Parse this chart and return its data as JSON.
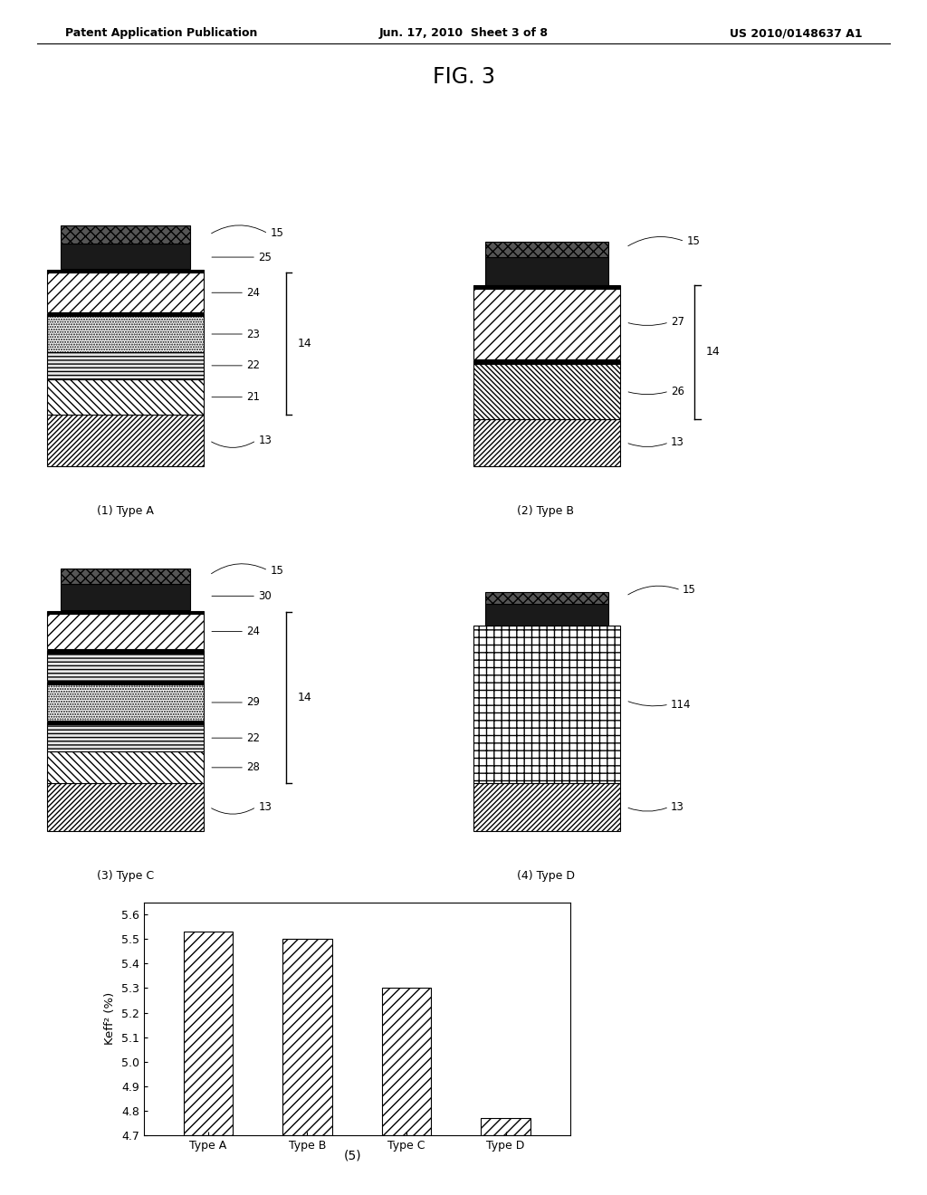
{
  "header_left": "Patent Application Publication",
  "header_center": "Jun. 17, 2010  Sheet 3 of 8",
  "header_right": "US 2010/0148637 A1",
  "fig_title": "FIG. 3",
  "bar_categories": [
    "Type A",
    "Type B",
    "Type C",
    "Type D"
  ],
  "bar_values": [
    5.53,
    5.5,
    5.3,
    4.77
  ],
  "ylabel": "Keff² (%)",
  "ylim_min": 4.7,
  "ylim_max": 5.65,
  "yticks": [
    4.7,
    4.8,
    4.9,
    5.0,
    5.1,
    5.2,
    5.3,
    5.4,
    5.5,
    5.6
  ],
  "chart_label": "(5)",
  "background_color": "#ffffff"
}
